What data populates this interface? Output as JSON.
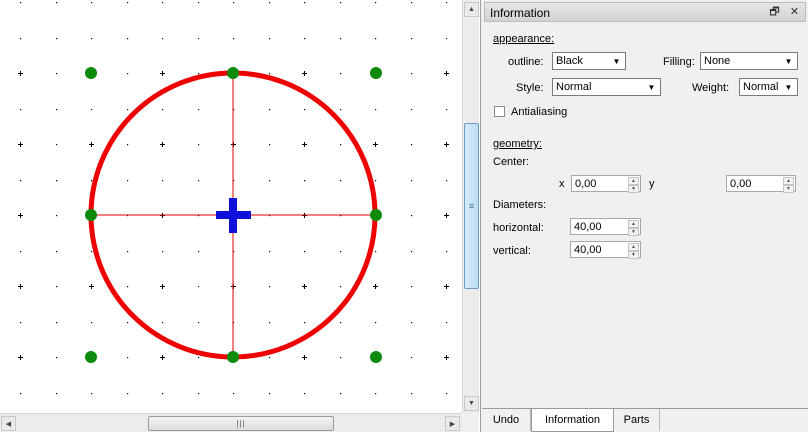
{
  "canvas": {
    "scrollbar_grip": "|||",
    "colors": {
      "circle": "#ee0000",
      "axis": "#dd0000",
      "handle": "#0b8a0b",
      "center": "#1010dd",
      "grid_dot": "#000000"
    }
  },
  "panel": {
    "title": "Information",
    "float_glyph": "🗗",
    "close_glyph": "✕",
    "appearance": {
      "section_label": "appearance:",
      "outline_label": "outline:",
      "outline_value": "Black",
      "filling_label": "Filling:",
      "filling_value": "None",
      "style_label": "Style:",
      "style_value": "Normal",
      "weight_label": "Weight:",
      "weight_value": "Normal",
      "antialiasing_label": "Antialiasing",
      "antialiasing_checked": false
    },
    "geometry": {
      "section_label": "geometry:",
      "center_label": "Center:",
      "x_label": "x",
      "x_value": "0,00",
      "y_label": "y",
      "y_value": "0,00",
      "diameters_label": "Diameters:",
      "horizontal_label": "horizontal:",
      "horizontal_value": "40,00",
      "vertical_label": "vertical:",
      "vertical_value": "40,00"
    }
  },
  "tabs": [
    {
      "label": "Undo",
      "active": false
    },
    {
      "label": "Information",
      "active": true
    },
    {
      "label": "Parts",
      "active": false
    }
  ]
}
